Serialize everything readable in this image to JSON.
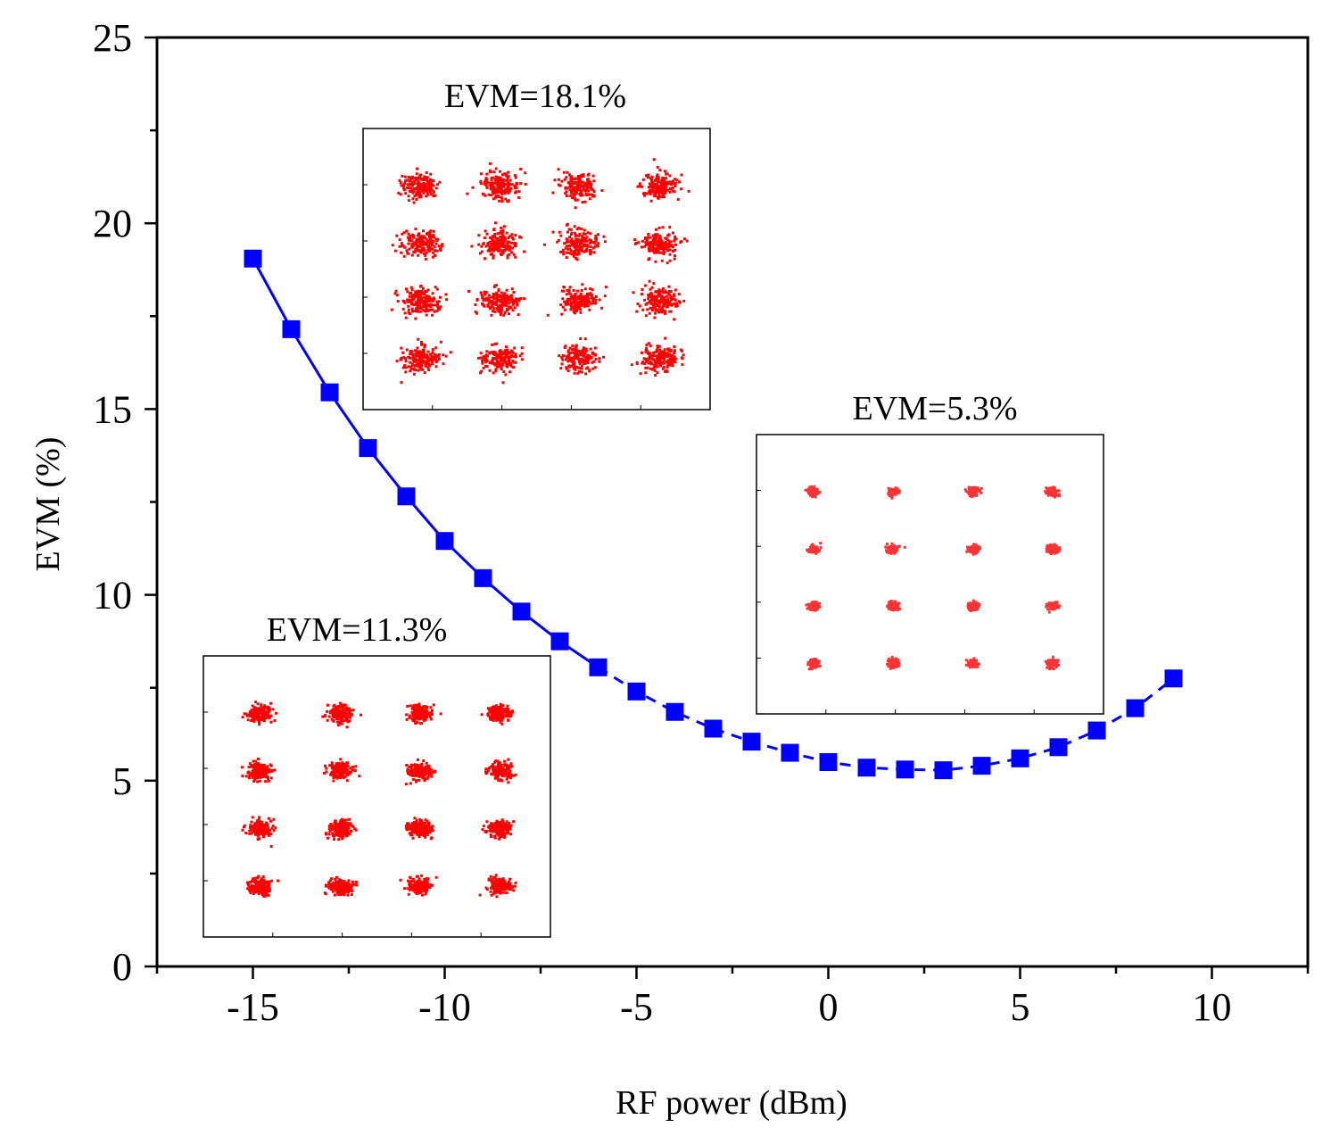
{
  "chart_data": {
    "type": "line",
    "title": "",
    "xlabel": "RF power (dBm)",
    "ylabel": "EVM (%)",
    "xlim": [
      -17.5,
      12.5
    ],
    "ylim": [
      0,
      25
    ],
    "x_ticks": [
      -15,
      -10,
      -5,
      0,
      5,
      10
    ],
    "y_ticks": [
      0,
      5,
      10,
      15,
      20,
      25
    ],
    "grid": false,
    "series": [
      {
        "name": "EVM",
        "color": "#0000ff",
        "marker": "square",
        "x": [
          -15,
          -14,
          -13,
          -12,
          -11,
          -10,
          -9,
          -8,
          -7,
          -6,
          -5,
          -4,
          -3,
          -2,
          -1,
          0,
          1,
          2,
          3,
          4,
          5,
          6,
          7,
          8,
          9
        ],
        "values": [
          19.05,
          17.15,
          15.45,
          13.95,
          12.65,
          11.45,
          10.45,
          9.55,
          8.75,
          8.05,
          7.4,
          6.85,
          6.4,
          6.05,
          5.75,
          5.5,
          5.35,
          5.3,
          5.28,
          5.4,
          5.6,
          5.9,
          6.35,
          6.95,
          7.75
        ]
      }
    ],
    "insets": [
      {
        "title": "EVM=18.1%",
        "constellation": "16-QAM",
        "evm_percent": 18.1,
        "point_color": "#ff0000"
      },
      {
        "title": "EVM=5.3%",
        "constellation": "16-QAM",
        "evm_percent": 5.3,
        "point_color": "#ff3333"
      },
      {
        "title": "EVM=11.3%",
        "constellation": "16-QAM",
        "evm_percent": 11.3,
        "point_color": "#ff0000"
      }
    ]
  }
}
